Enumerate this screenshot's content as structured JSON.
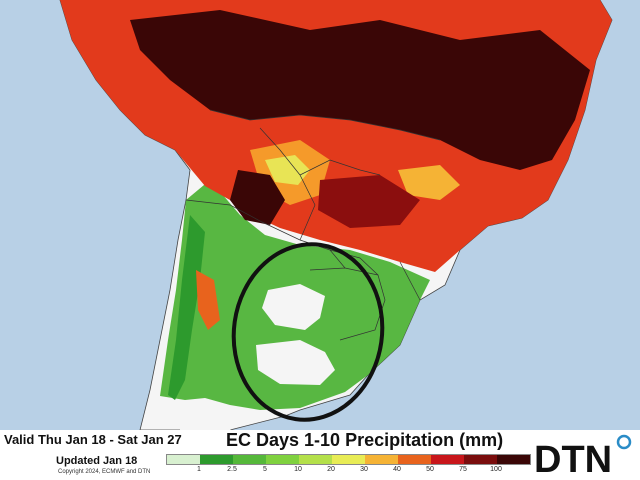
{
  "map": {
    "title": "EC Days 1-10 Precipitation (mm)",
    "valid": "Valid Thu Jan 18 - Sat Jan 27",
    "updated": "Updated Jan 18",
    "copyright": "Copyright 2024, ECMWF and DTN",
    "logo_text": "DTN",
    "colors": {
      "ocean": "#b8d0e6",
      "land": "#f5f5f5",
      "highlight_ring": "#111111"
    }
  },
  "legend": {
    "bins": [
      {
        "label": "1",
        "color": "#d8f0d0"
      },
      {
        "label": "2.5",
        "color": "#2d9a2d"
      },
      {
        "label": "5",
        "color": "#55b83a"
      },
      {
        "label": "10",
        "color": "#7fd13f"
      },
      {
        "label": "20",
        "color": "#b4e04a"
      },
      {
        "label": "30",
        "color": "#e8ec55"
      },
      {
        "label": "40",
        "color": "#f5b335"
      },
      {
        "label": "50",
        "color": "#e8631d"
      },
      {
        "label": "75",
        "color": "#c8161b"
      },
      {
        "label": "100",
        "color": "#7a0d0d"
      },
      {
        "label": "",
        "color": "#3a0606"
      }
    ]
  }
}
